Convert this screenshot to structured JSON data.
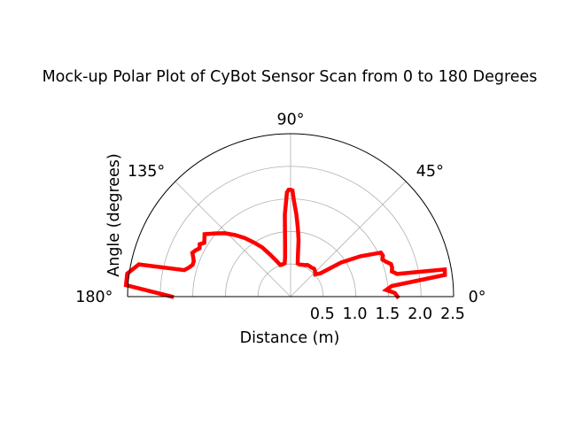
{
  "chart_data": {
    "type": "polar-line",
    "title": "Mock-up Polar Plot of CyBot Sensor Scan from 0 to 180 Degrees",
    "xlabel": "Distance (m)",
    "ylabel": "Angle (degrees)",
    "angle_range_deg": [
      0,
      180
    ],
    "radius_range": [
      0,
      2.5
    ],
    "angle_ticks": [
      "0°",
      "45°",
      "90°",
      "135°",
      "180°"
    ],
    "radius_ticks": [
      "0.5",
      "1.0",
      "1.5",
      "2.0",
      "2.5"
    ],
    "grid": true,
    "line_color": "#ff0000",
    "series": [
      {
        "theta_deg": [
          0,
          2,
          4,
          6,
          8,
          10,
          12,
          14,
          16,
          18,
          20,
          22,
          24,
          26,
          30,
          34,
          38,
          42,
          46,
          50,
          54,
          58,
          62,
          66,
          70,
          74,
          78,
          80,
          82,
          84,
          86,
          88,
          89,
          90,
          91,
          92,
          94,
          96,
          98,
          100,
          104,
          108,
          112,
          116,
          120,
          124,
          128,
          132,
          136,
          140,
          144,
          148,
          150,
          152,
          154,
          156,
          158,
          160,
          162,
          164,
          166,
          168,
          172,
          176,
          180
        ],
        "r": [
          1.64,
          1.6,
          1.47,
          1.56,
          2.39,
          2.4,
          1.67,
          1.6,
          1.62,
          1.62,
          1.56,
          1.52,
          1.55,
          1.54,
          1.24,
          0.94,
          0.58,
          0.51,
          0.54,
          0.56,
          0.55,
          0.55,
          0.55,
          0.53,
          0.52,
          0.51,
          0.52,
          0.65,
          0.88,
          1.06,
          1.27,
          1.47,
          1.63,
          1.64,
          1.64,
          1.6,
          1.26,
          0.8,
          0.61,
          0.52,
          0.51,
          0.51,
          0.6,
          0.72,
          0.87,
          1.0,
          1.14,
          1.27,
          1.4,
          1.51,
          1.63,
          1.56,
          1.61,
          1.58,
          1.62,
          1.65,
          1.61,
          1.58,
          1.58,
          1.62,
          1.68,
          2.38,
          2.53,
          2.53,
          1.82
        ]
      }
    ]
  }
}
